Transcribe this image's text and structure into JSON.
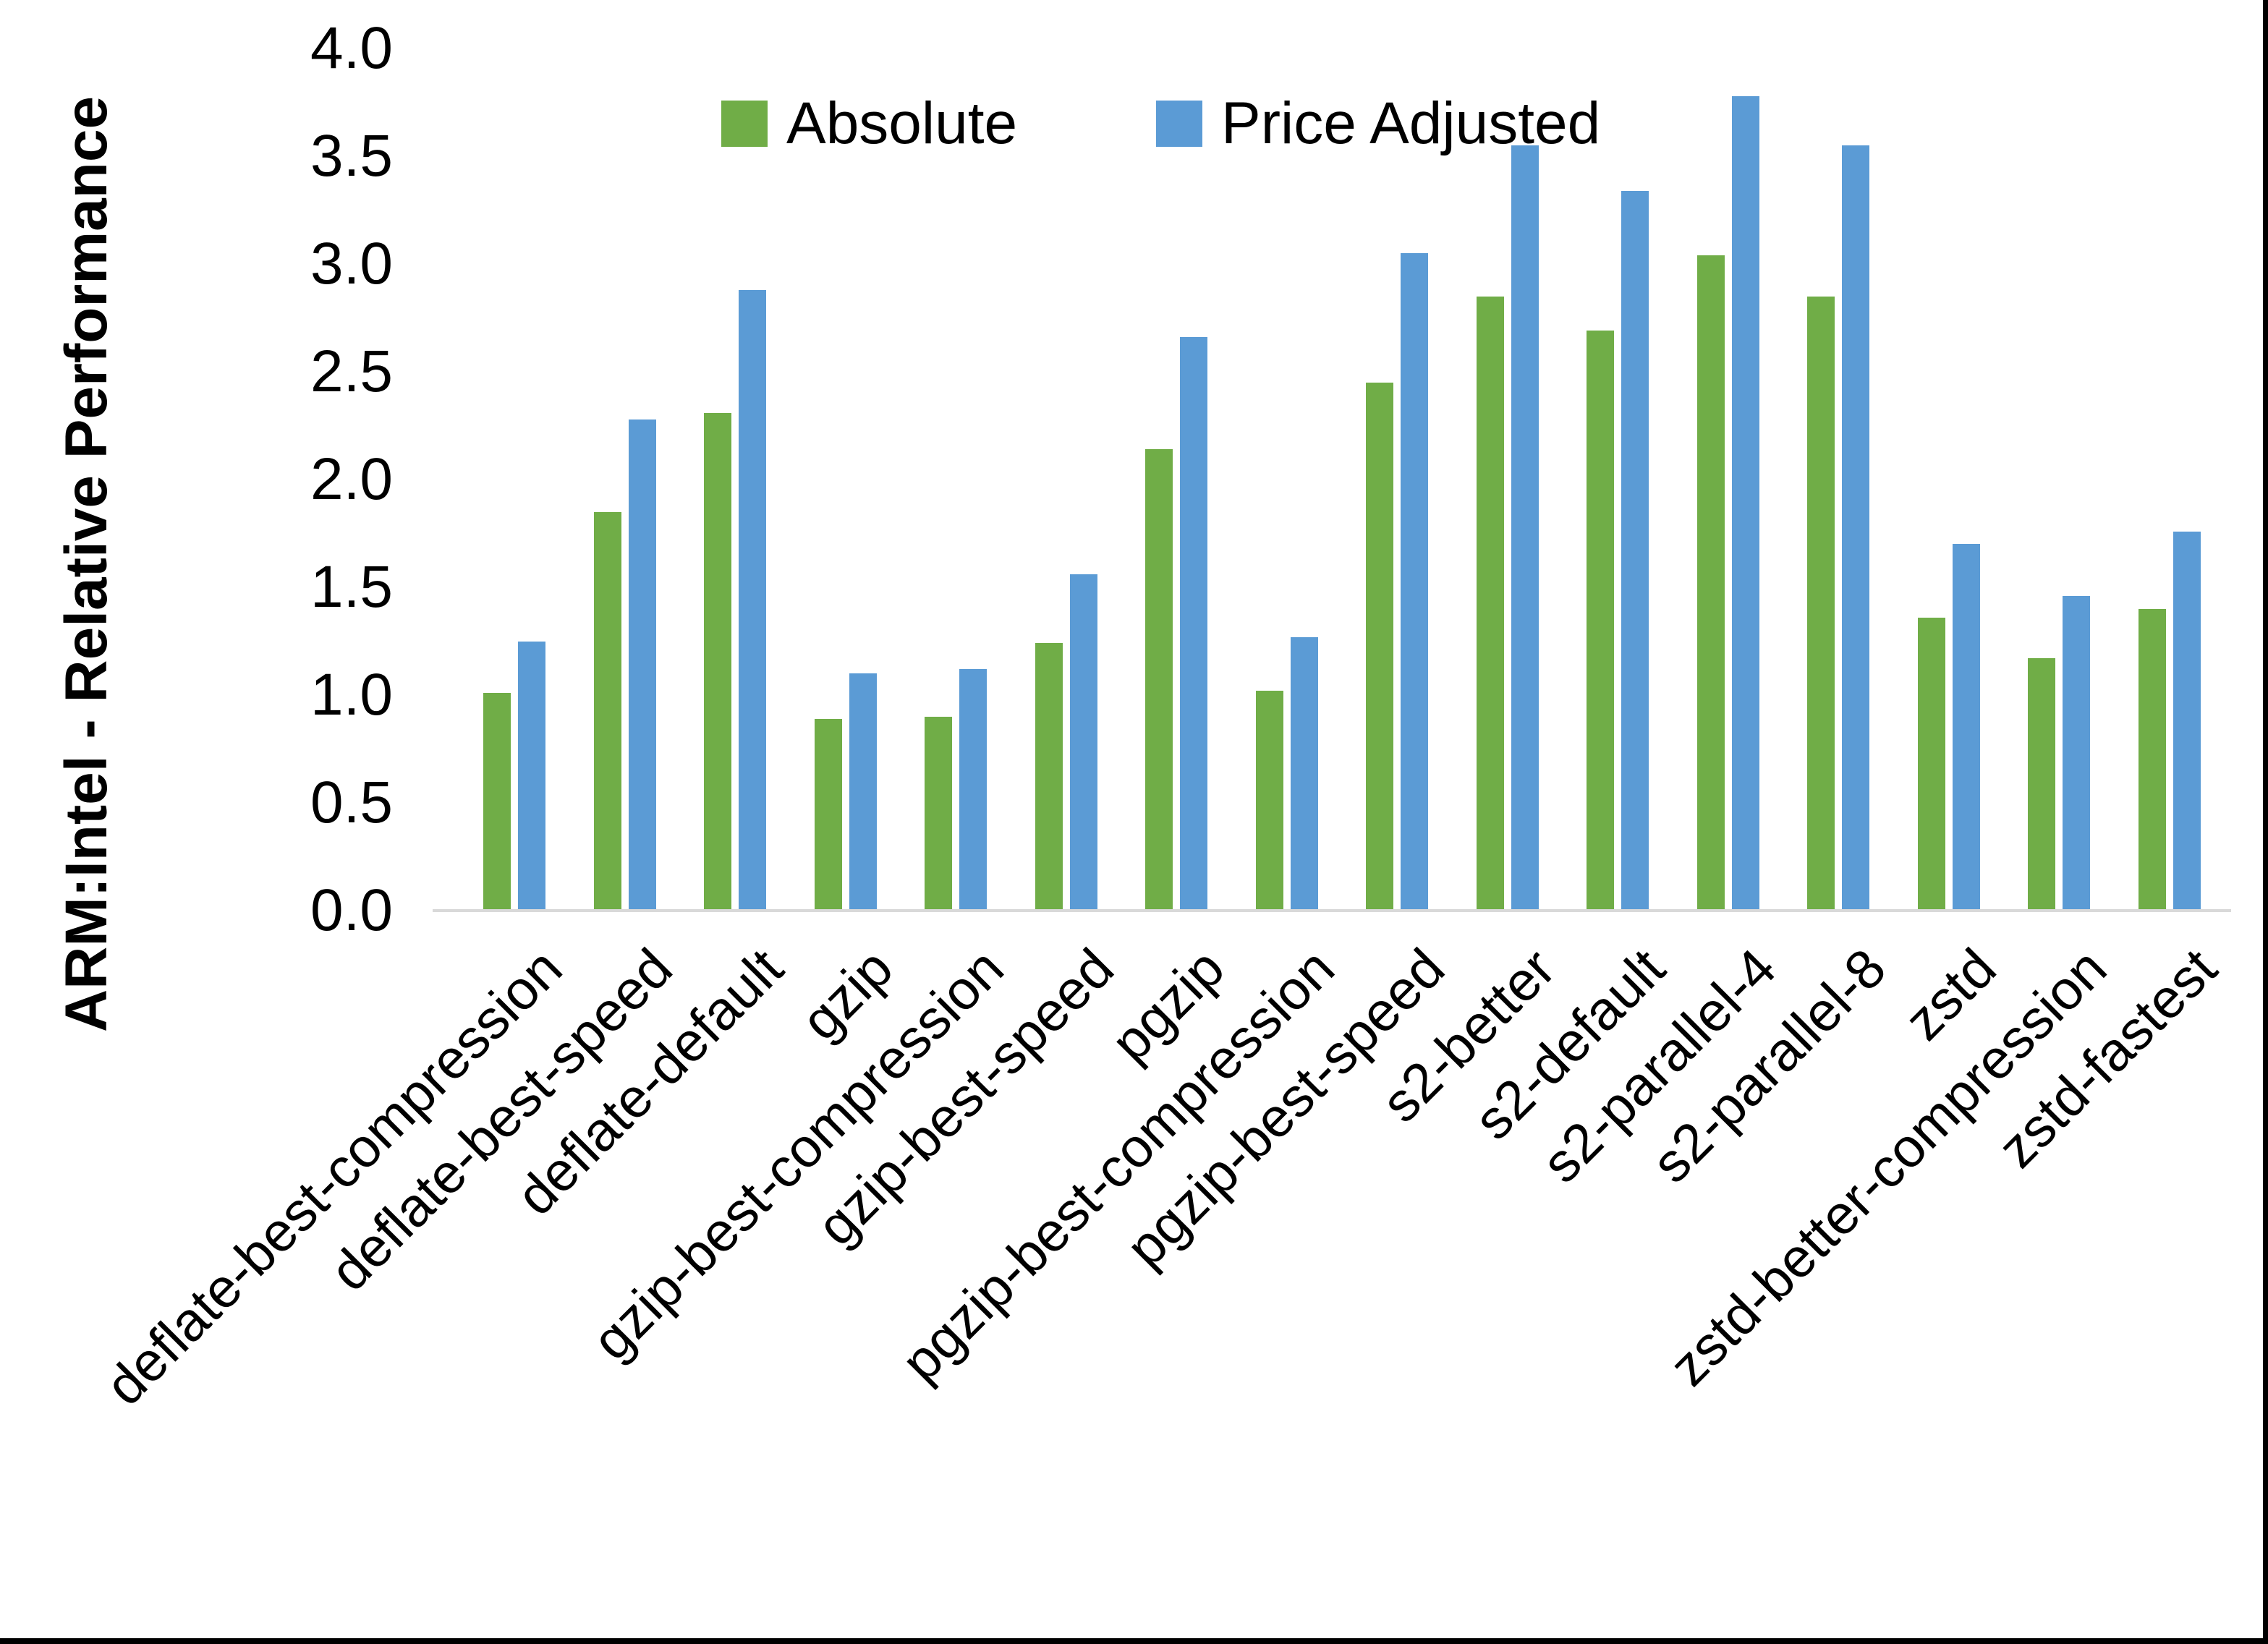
{
  "window": {
    "background": "#ffffff",
    "border_color": "#000000"
  },
  "chart_data": {
    "type": "bar",
    "title": "",
    "xlabel": "",
    "ylabel": "ARM:Intel - Relative Performance",
    "ylim": [
      0.0,
      4.0
    ],
    "ytick_step": 0.5,
    "ytick_labels": [
      "0.0",
      "0.5",
      "1.0",
      "1.5",
      "2.0",
      "2.5",
      "3.0",
      "3.5",
      "4.0"
    ],
    "grid": false,
    "legend_position": "top-center",
    "axis_line_color": "#d9d9d9",
    "text_color": "#000000",
    "categories": [
      "deflate-best-compression",
      "deflate-best-speed",
      "deflate-default",
      "gzip",
      "gzip-best-compression",
      "gzip-best-speed",
      "pgzip",
      "pgzip-best-compression",
      "pgzip-best-speed",
      "s2-better",
      "s2-default",
      "s2-parallel-4",
      "s2-parallel-8",
      "zstd",
      "zstd-better-compression",
      "zstd-fastest"
    ],
    "series": [
      {
        "name": "Absolute",
        "color": "#70AD47",
        "values": [
          1.01,
          1.85,
          2.31,
          0.89,
          0.9,
          1.24,
          2.14,
          1.02,
          2.45,
          2.85,
          2.69,
          3.04,
          2.85,
          1.36,
          1.17,
          1.4
        ]
      },
      {
        "name": "Price Adjusted",
        "color": "#5B9BD5",
        "values": [
          1.25,
          2.28,
          2.88,
          1.1,
          1.12,
          1.56,
          2.66,
          1.27,
          3.05,
          3.55,
          3.34,
          3.78,
          3.55,
          1.7,
          1.46,
          1.76
        ]
      }
    ]
  }
}
